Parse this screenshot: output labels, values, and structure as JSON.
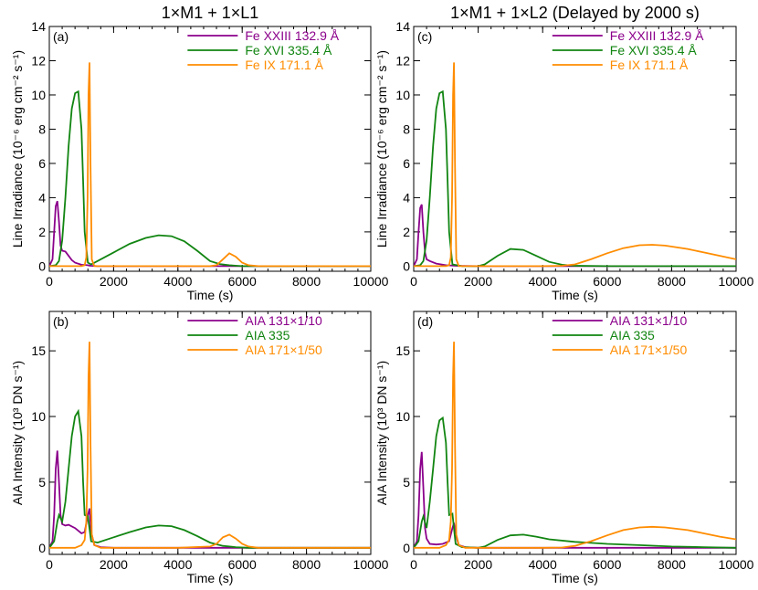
{
  "colors": {
    "purple": "#8b008b",
    "green": "#118511",
    "orange": "#ff8c00"
  },
  "chart_data": [
    {
      "type": "line",
      "panel_label": "(a)",
      "title": "1×M1 + 1×L1",
      "xlabel": "Time (s)",
      "ylabel": "Line Irradiance (10⁻⁶ erg cm⁻² s⁻¹)",
      "xlim": [
        0,
        10000
      ],
      "ylim": [
        -0.3,
        14
      ],
      "xticks": [
        0,
        2000,
        4000,
        6000,
        8000,
        10000
      ],
      "yticks": [
        0,
        2,
        4,
        6,
        8,
        10,
        12,
        14
      ],
      "legend_position": "top-right",
      "series": [
        {
          "name": "Fe XXIII 132.9 Å",
          "color": "purple",
          "x": [
            0,
            100,
            150,
            200,
            250,
            300,
            350,
            400,
            500,
            600,
            700,
            800,
            1000,
            1200,
            1250,
            1300,
            1500,
            2000,
            3000,
            4000,
            5000,
            6000,
            8000,
            10000
          ],
          "y": [
            0,
            0.4,
            2.0,
            3.5,
            3.8,
            2.6,
            1.2,
            0.9,
            0.85,
            0.6,
            0.35,
            0.2,
            0.08,
            0.05,
            0.03,
            0.02,
            0,
            0,
            0,
            0,
            0,
            0,
            0,
            0
          ]
        },
        {
          "name": "Fe XVI 335.4 Å",
          "color": "green",
          "x": [
            0,
            200,
            300,
            400,
            500,
            600,
            700,
            800,
            900,
            1000,
            1050,
            1100,
            1200,
            1300,
            1500,
            2000,
            2500,
            3000,
            3400,
            3800,
            4200,
            4600,
            5000,
            5300,
            5600,
            6000,
            6500,
            8000,
            10000
          ],
          "y": [
            0,
            0.05,
            0.3,
            1.5,
            4.0,
            7.0,
            9.2,
            10.1,
            10.2,
            8.0,
            5.0,
            2.0,
            0.2,
            0.1,
            0.3,
            0.8,
            1.3,
            1.65,
            1.8,
            1.75,
            1.45,
            0.9,
            0.3,
            0.12,
            0.05,
            0,
            0,
            0,
            0
          ]
        },
        {
          "name": "Fe IX 171.1 Å",
          "color": "orange",
          "x": [
            0,
            1000,
            1100,
            1150,
            1190,
            1220,
            1250,
            1280,
            1320,
            1400,
            2000,
            4000,
            5000,
            5200,
            5400,
            5600,
            5800,
            6000,
            6200,
            6500,
            8000,
            10000
          ],
          "y": [
            0,
            0,
            0.05,
            0.5,
            4.0,
            10.0,
            11.9,
            6.0,
            0.4,
            0,
            0,
            0,
            0,
            0.05,
            0.4,
            0.75,
            0.55,
            0.2,
            0.05,
            0,
            0,
            0
          ]
        }
      ]
    },
    {
      "type": "line",
      "panel_label": "(c)",
      "title": "1×M1 + 1×L2 (Delayed by 2000 s)",
      "xlabel": "Time (s)",
      "ylabel": "Line Irradiance (10⁻⁶ erg cm⁻² s⁻¹)",
      "xlim": [
        0,
        10000
      ],
      "ylim": [
        -0.3,
        14
      ],
      "xticks": [
        0,
        2000,
        4000,
        6000,
        8000,
        10000
      ],
      "yticks": [
        0,
        2,
        4,
        6,
        8,
        10,
        12,
        14
      ],
      "legend_position": "top-right",
      "series": [
        {
          "name": "Fe XXIII 132.9 Å",
          "color": "purple",
          "x": [
            0,
            100,
            150,
            200,
            250,
            300,
            350,
            400,
            500,
            700,
            1000,
            1300,
            2000,
            10000
          ],
          "y": [
            0,
            0.4,
            2.0,
            3.4,
            3.6,
            2.0,
            0.8,
            0.4,
            0.3,
            0.15,
            0.05,
            0.02,
            0,
            0
          ]
        },
        {
          "name": "Fe XVI 335.4 Å",
          "color": "green",
          "x": [
            0,
            200,
            300,
            400,
            500,
            600,
            700,
            800,
            900,
            1000,
            1050,
            1100,
            1200,
            1500,
            2000,
            2200,
            2600,
            3000,
            3400,
            3800,
            4200,
            4600,
            5000,
            6000,
            8000,
            10000
          ],
          "y": [
            0,
            0.05,
            0.3,
            1.5,
            4.0,
            7.0,
            9.2,
            10.1,
            10.2,
            8.0,
            5.0,
            2.0,
            0.1,
            0,
            0,
            0.1,
            0.6,
            1.0,
            0.95,
            0.6,
            0.25,
            0.08,
            0.02,
            0,
            0,
            0
          ]
        },
        {
          "name": "Fe IX 171.1 Å",
          "color": "orange",
          "x": [
            0,
            1000,
            1100,
            1150,
            1190,
            1220,
            1250,
            1280,
            1320,
            1400,
            4000,
            4600,
            5000,
            5500,
            6000,
            6500,
            7000,
            7400,
            7800,
            8500,
            9000,
            9500,
            10000
          ],
          "y": [
            0,
            0,
            0.05,
            0.5,
            4.0,
            10.0,
            11.9,
            6.0,
            0.4,
            0,
            0,
            0.02,
            0.1,
            0.4,
            0.75,
            1.05,
            1.22,
            1.25,
            1.2,
            1.0,
            0.8,
            0.6,
            0.4
          ]
        }
      ]
    },
    {
      "type": "line",
      "panel_label": "(b)",
      "title": "",
      "xlabel": "Time (s)",
      "ylabel": "AIA Intensity (10³ DN s⁻¹)",
      "xlim": [
        0,
        10000
      ],
      "ylim": [
        -0.5,
        18
      ],
      "xticks": [
        0,
        2000,
        4000,
        6000,
        8000,
        10000
      ],
      "yticks": [
        0,
        5,
        10,
        15
      ],
      "legend_position": "top-right",
      "series": [
        {
          "name": "AIA 131×1/10",
          "color": "purple",
          "x": [
            0,
            100,
            150,
            200,
            250,
            300,
            350,
            400,
            500,
            600,
            800,
            1000,
            1100,
            1200,
            1250,
            1300,
            1400,
            1600,
            2000,
            10000
          ],
          "y": [
            0,
            0.5,
            2.5,
            6.0,
            7.4,
            5.0,
            2.5,
            1.8,
            1.7,
            1.75,
            1.5,
            1.1,
            1.2,
            2.5,
            3.0,
            1.2,
            0.2,
            0.05,
            0,
            0
          ]
        },
        {
          "name": "AIA 335",
          "color": "green",
          "x": [
            0,
            150,
            250,
            300,
            400,
            500,
            600,
            700,
            800,
            900,
            1000,
            1050,
            1100,
            1200,
            1300,
            1500,
            2000,
            2500,
            3000,
            3400,
            3800,
            4200,
            4600,
            5000,
            5400,
            5800,
            6200,
            8000,
            10000
          ],
          "y": [
            0,
            0.5,
            2.0,
            2.5,
            2.0,
            3.5,
            6.0,
            8.5,
            10.0,
            10.4,
            8.5,
            5.0,
            2.5,
            2.4,
            0.5,
            0.4,
            0.8,
            1.2,
            1.55,
            1.7,
            1.65,
            1.35,
            0.9,
            0.4,
            0.15,
            0.05,
            0,
            0,
            0
          ]
        },
        {
          "name": "AIA 171×1/50",
          "color": "orange",
          "x": [
            0,
            800,
            1000,
            1100,
            1150,
            1190,
            1220,
            1250,
            1280,
            1320,
            1400,
            1600,
            3000,
            4000,
            5000,
            5200,
            5400,
            5600,
            5800,
            6000,
            6200,
            6500,
            8000,
            10000
          ],
          "y": [
            0,
            0,
            0.2,
            0.6,
            2.0,
            6.0,
            13.0,
            15.7,
            8.0,
            1.0,
            0.2,
            0,
            0,
            0,
            0.1,
            0.3,
            0.8,
            1.0,
            0.7,
            0.3,
            0.1,
            0,
            0,
            0
          ]
        }
      ]
    },
    {
      "type": "line",
      "panel_label": "(d)",
      "title": "",
      "xlabel": "Time (s)",
      "ylabel": "AIA Intensity (10³ DN s⁻¹)",
      "xlim": [
        0,
        10000
      ],
      "ylim": [
        -0.5,
        18
      ],
      "xticks": [
        0,
        2000,
        4000,
        6000,
        8000,
        10000
      ],
      "yticks": [
        0,
        5,
        10,
        15
      ],
      "legend_position": "top-right",
      "series": [
        {
          "name": "AIA 131×1/10",
          "color": "purple",
          "x": [
            0,
            100,
            150,
            200,
            250,
            300,
            350,
            400,
            500,
            700,
            900,
            1100,
            1200,
            1250,
            1300,
            1400,
            1600,
            2000,
            10000
          ],
          "y": [
            0,
            0.5,
            2.5,
            6.0,
            7.3,
            4.5,
            1.5,
            0.7,
            0.3,
            0.25,
            0.3,
            0.5,
            1.5,
            1.9,
            1.0,
            0.2,
            0.05,
            0,
            0
          ]
        },
        {
          "name": "AIA 335",
          "color": "green",
          "x": [
            0,
            150,
            250,
            300,
            400,
            500,
            600,
            700,
            800,
            900,
            1000,
            1050,
            1100,
            1200,
            1300,
            1500,
            2000,
            2200,
            2600,
            3000,
            3400,
            3800,
            4200,
            5000,
            6000,
            7000,
            8000,
            9000,
            10000
          ],
          "y": [
            0,
            0.5,
            2.0,
            2.4,
            1.5,
            3.5,
            6.0,
            8.5,
            9.7,
            9.9,
            8.0,
            5.0,
            2.5,
            2.6,
            0.3,
            0.05,
            0,
            0.1,
            0.6,
            0.95,
            1.0,
            0.85,
            0.65,
            0.45,
            0.3,
            0.2,
            0.1,
            0.05,
            0
          ]
        },
        {
          "name": "AIA 171×1/50",
          "color": "orange",
          "x": [
            0,
            800,
            1000,
            1100,
            1150,
            1190,
            1220,
            1250,
            1280,
            1320,
            1400,
            1600,
            4000,
            4600,
            5000,
            5500,
            6000,
            6500,
            7000,
            7400,
            7800,
            8500,
            9000,
            9500,
            10000
          ],
          "y": [
            0,
            0,
            0.2,
            0.6,
            2.0,
            6.0,
            13.0,
            15.7,
            8.0,
            1.0,
            0.2,
            0,
            0,
            0.02,
            0.15,
            0.5,
            0.95,
            1.35,
            1.55,
            1.6,
            1.55,
            1.35,
            1.1,
            0.85,
            0.65
          ]
        }
      ]
    }
  ]
}
